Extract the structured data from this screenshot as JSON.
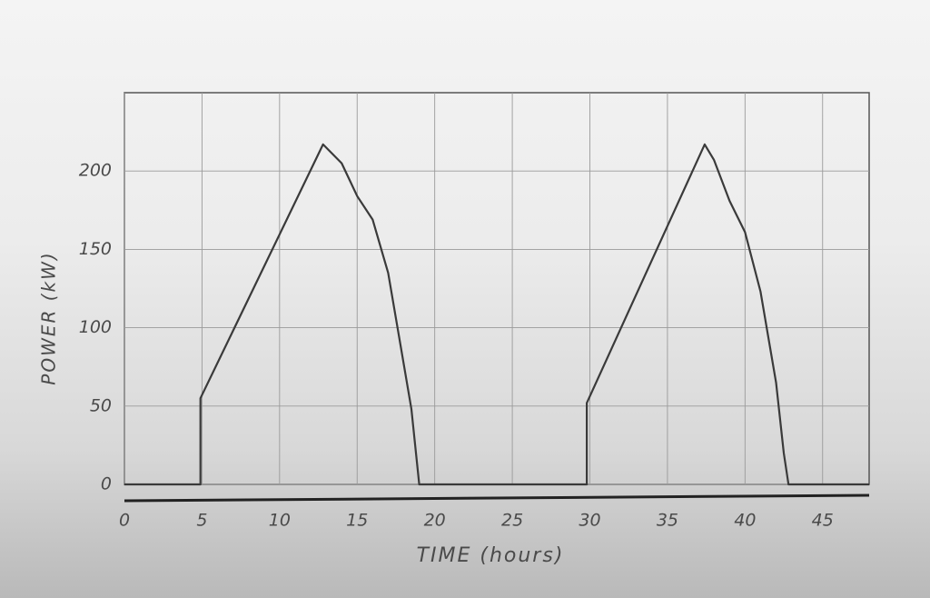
{
  "chart_data": {
    "type": "line",
    "xlabel": "TIME (hours)",
    "ylabel": "POWER (kW)",
    "x": [
      0,
      4.9,
      4.9,
      12.8,
      14,
      15,
      16,
      17,
      18,
      18.5,
      19,
      29.8,
      29.8,
      37.4,
      38,
      39,
      40,
      41,
      42,
      42.5,
      42.8,
      48
    ],
    "series": [
      {
        "color": "#3a3a3a",
        "values": [
          0,
          0,
          55,
          217,
          205,
          184,
          169,
          135,
          77,
          48,
          0,
          0,
          52,
          217,
          207,
          181,
          161,
          123,
          65,
          20,
          0,
          0
        ]
      }
    ],
    "xlim": [
      0,
      48
    ],
    "xticks": [
      0,
      5,
      10,
      15,
      20,
      25,
      30,
      35,
      40,
      45
    ],
    "ylim": [
      0,
      250
    ],
    "yticks": [
      0,
      50,
      100,
      150,
      200
    ],
    "grid": true
  }
}
